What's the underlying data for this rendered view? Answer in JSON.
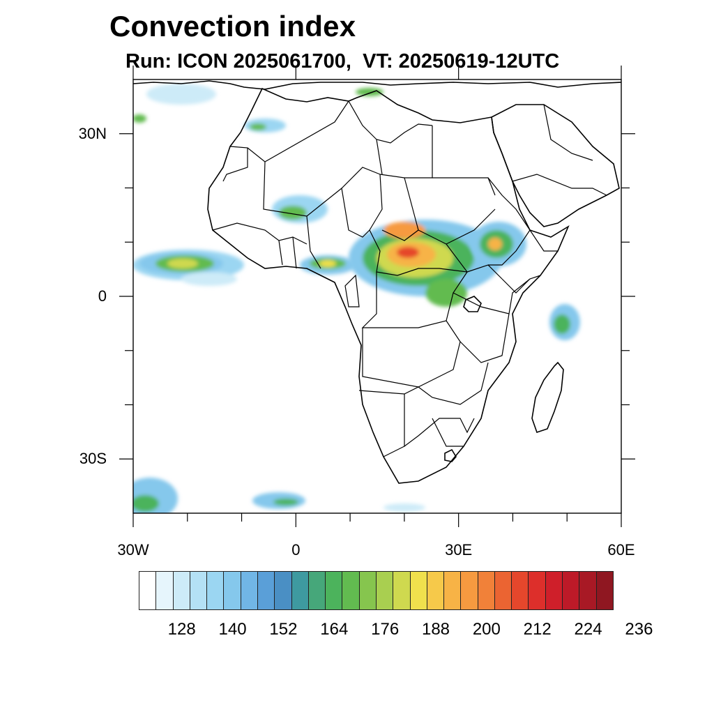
{
  "title": "Convection index",
  "subtitle": "Run: ICON 2025061700,  VT: 20250619-12UTC",
  "map": {
    "lon_range": [
      -30,
      60
    ],
    "lat_range": [
      -40,
      40
    ],
    "lon_ticks": [
      {
        "value": -30,
        "label": "30W"
      },
      {
        "value": 0,
        "label": "0"
      },
      {
        "value": 30,
        "label": "30E"
      },
      {
        "value": 60,
        "label": "60E"
      }
    ],
    "lat_ticks": [
      {
        "value": 30,
        "label": "30N"
      },
      {
        "value": 0,
        "label": "0"
      },
      {
        "value": -30,
        "label": "30S"
      }
    ],
    "land_color": "#ffffff",
    "border_color": "#000000"
  },
  "colorbar": {
    "colors": [
      "#ffffff",
      "#e6f5fc",
      "#cdebf8",
      "#b4e1f5",
      "#9bd6f2",
      "#85c8ec",
      "#71b6e6",
      "#5a9fd8",
      "#4a8fc4",
      "#3e9aa0",
      "#46a77a",
      "#4cb35c",
      "#62bb50",
      "#86c54e",
      "#a9cf50",
      "#cfd94f",
      "#f0e04d",
      "#f6c94a",
      "#f7b346",
      "#f69a40",
      "#f18139",
      "#eb6432",
      "#e5472c",
      "#dd2f2b",
      "#cf1f2a",
      "#bd1a28",
      "#a81925",
      "#8f1721"
    ],
    "labels": [
      "128",
      "140",
      "152",
      "164",
      "176",
      "188",
      "200",
      "212",
      "224",
      "236"
    ]
  }
}
